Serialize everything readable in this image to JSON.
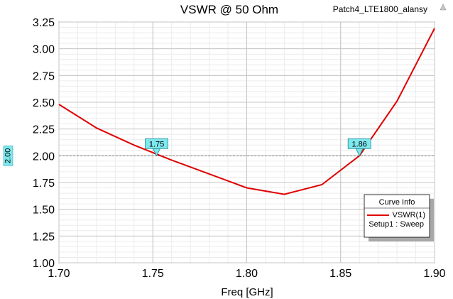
{
  "chart_data": {
    "type": "line",
    "title": "VSWR @ 50 Ohm",
    "design_name": "Patch4_LTE1800_alansy",
    "xlabel": "Freq [GHz]",
    "ylabel": "",
    "xlim": [
      1.7,
      1.9
    ],
    "ylim": [
      1.0,
      3.25
    ],
    "x_ticks": [
      1.7,
      1.75,
      1.8,
      1.85,
      1.9
    ],
    "x_tick_labels": [
      "1.70",
      "1.75",
      "1.80",
      "1.85",
      "1.90"
    ],
    "y_ticks": [
      1.0,
      1.25,
      1.5,
      1.75,
      2.0,
      2.25,
      2.5,
      2.75,
      3.0,
      3.25
    ],
    "y_tick_labels": [
      "1.00",
      "1.25",
      "1.50",
      "1.75",
      "2.00",
      "2.25",
      "2.50",
      "2.75",
      "3.00",
      "3.25"
    ],
    "grid": true,
    "series": [
      {
        "name": "VSWR(1)",
        "setup": "Setup1 : Sweep",
        "color": "#e00000",
        "x": [
          1.7,
          1.72,
          1.74,
          1.76,
          1.78,
          1.8,
          1.82,
          1.84,
          1.86,
          1.88,
          1.9
        ],
        "y": [
          2.48,
          2.26,
          2.1,
          1.96,
          1.83,
          1.7,
          1.64,
          1.73,
          2.0,
          2.51,
          3.19
        ]
      }
    ],
    "reference_line": {
      "y": 2.0,
      "label": "2.00",
      "color": "#808080"
    },
    "markers": [
      {
        "label": "1.75",
        "x": 1.752,
        "y": 2.0
      },
      {
        "label": "1.86",
        "x": 1.86,
        "y": 2.0
      }
    ],
    "legend": {
      "title": "Curve Info",
      "placement": "bottom-right",
      "entry_name": "VSWR(1)",
      "entry_setup": "Setup1 : Sweep"
    }
  }
}
